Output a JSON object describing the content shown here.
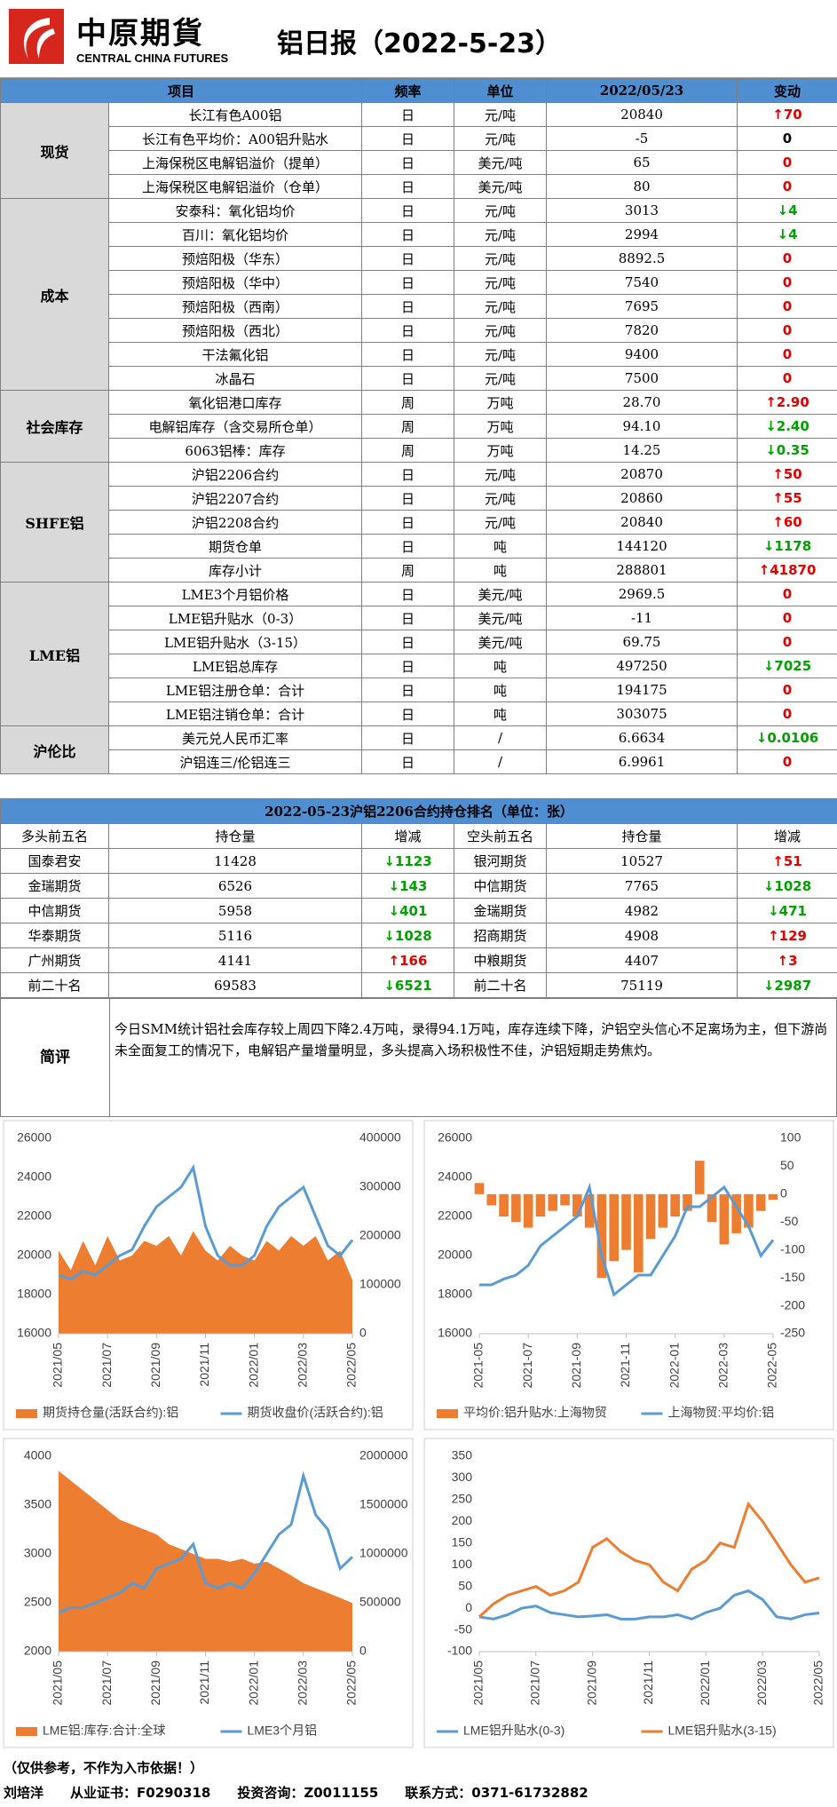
{
  "header": {
    "logo_cn": "中原期貨",
    "logo_en": "CENTRAL CHINA FUTURES",
    "title": "铝日报（2022-5-23）"
  },
  "table": {
    "columns": [
      "项目",
      "频率",
      "单位",
      "2022/05/23",
      "变动"
    ],
    "groups": [
      {
        "name": "现货",
        "rows": [
          {
            "item": "长江有色A00铝",
            "freq": "日",
            "unit": "元/吨",
            "value": "20840",
            "change": "↑70",
            "color": "#e00000"
          },
          {
            "item": "长江有色平均价：A00铝升贴水",
            "freq": "日",
            "unit": "元/吨",
            "value": "-5",
            "change": "0",
            "color": "#000000"
          },
          {
            "item": "上海保税区电解铝溢价（提单）",
            "freq": "日",
            "unit": "美元/吨",
            "value": "65",
            "change": "0",
            "color": "#e00000"
          },
          {
            "item": "上海保税区电解铝溢价（仓单）",
            "freq": "日",
            "unit": "美元/吨",
            "value": "80",
            "change": "0",
            "color": "#e00000"
          }
        ]
      },
      {
        "name": "成本",
        "rows": [
          {
            "item": "安泰科：氧化铝均价",
            "freq": "日",
            "unit": "元/吨",
            "value": "3013",
            "change": "↓4",
            "color": "#00a000"
          },
          {
            "item": "百川：氧化铝均价",
            "freq": "日",
            "unit": "元/吨",
            "value": "2994",
            "change": "↓4",
            "color": "#00a000"
          },
          {
            "item": "预焙阳极（华东）",
            "freq": "日",
            "unit": "元/吨",
            "value": "8892.5",
            "change": "0",
            "color": "#e00000"
          },
          {
            "item": "预焙阳极（华中）",
            "freq": "日",
            "unit": "元/吨",
            "value": "7540",
            "change": "0",
            "color": "#e00000"
          },
          {
            "item": "预焙阳极（西南）",
            "freq": "日",
            "unit": "元/吨",
            "value": "7695",
            "change": "0",
            "color": "#e00000"
          },
          {
            "item": "预焙阳极（西北）",
            "freq": "日",
            "unit": "元/吨",
            "value": "7820",
            "change": "0",
            "color": "#e00000"
          },
          {
            "item": "干法氟化铝",
            "freq": "日",
            "unit": "元/吨",
            "value": "9400",
            "change": "0",
            "color": "#e00000"
          },
          {
            "item": "冰晶石",
            "freq": "日",
            "unit": "元/吨",
            "value": "7500",
            "change": "0",
            "color": "#e00000"
          }
        ]
      },
      {
        "name": "社会库存",
        "rows": [
          {
            "item": "氧化铝港口库存",
            "freq": "周",
            "unit": "万吨",
            "value": "28.70",
            "change": "↑2.90",
            "color": "#e00000"
          },
          {
            "item": "电解铝库存（含交易所仓单）",
            "freq": "周",
            "unit": "万吨",
            "value": "94.10",
            "change": "↓2.40",
            "color": "#00a000"
          },
          {
            "item": "6063铝棒：库存",
            "freq": "周",
            "unit": "万吨",
            "value": "14.25",
            "change": "↓0.35",
            "color": "#00a000"
          }
        ]
      },
      {
        "name": "SHFE铝",
        "rows": [
          {
            "item": "沪铝2206合约",
            "freq": "日",
            "unit": "元/吨",
            "value": "20870",
            "change": "↑50",
            "color": "#e00000"
          },
          {
            "item": "沪铝2207合约",
            "freq": "日",
            "unit": "元/吨",
            "value": "20860",
            "change": "↑55",
            "color": "#e00000"
          },
          {
            "item": "沪铝2208合约",
            "freq": "日",
            "unit": "元/吨",
            "value": "20840",
            "change": "↑60",
            "color": "#e00000"
          },
          {
            "item": "期货仓单",
            "freq": "日",
            "unit": "吨",
            "value": "144120",
            "change": "↓1178",
            "color": "#00a000"
          },
          {
            "item": "库存小计",
            "freq": "周",
            "unit": "吨",
            "value": "288801",
            "change": "↑41870",
            "color": "#e00000"
          }
        ]
      },
      {
        "name": "LME铝",
        "rows": [
          {
            "item": "LME3个月铝价格",
            "freq": "日",
            "unit": "美元/吨",
            "value": "2969.5",
            "change": "0",
            "color": "#e00000"
          },
          {
            "item": "LME铝升贴水（0-3）",
            "freq": "日",
            "unit": "美元/吨",
            "value": "-11",
            "change": "0",
            "color": "#e00000"
          },
          {
            "item": "LME铝升贴水（3-15）",
            "freq": "日",
            "unit": "美元/吨",
            "value": "69.75",
            "change": "0",
            "color": "#e00000"
          },
          {
            "item": "LME铝总库存",
            "freq": "日",
            "unit": "吨",
            "value": "497250",
            "change": "↓7025",
            "color": "#00a000"
          },
          {
            "item": "LME铝注册仓单：合计",
            "freq": "日",
            "unit": "吨",
            "value": "194175",
            "change": "0",
            "color": "#e00000"
          },
          {
            "item": "LME铝注销仓单：合计",
            "freq": "日",
            "unit": "吨",
            "value": "303075",
            "change": "0",
            "color": "#e00000"
          }
        ]
      },
      {
        "name": "沪伦比",
        "rows": [
          {
            "item": "美元兑人民币汇率",
            "freq": "日",
            "unit": "/",
            "value": "6.6634",
            "change": "↓0.0106",
            "color": "#00a000"
          },
          {
            "item": "沪铝连三/伦铝连三",
            "freq": "日",
            "unit": "/",
            "value": "6.9961",
            "change": "0",
            "color": "#e00000"
          }
        ]
      }
    ]
  },
  "ranking": {
    "title": "2022-05-23沪铝2206合约持仓排名（单位：张）",
    "columns": [
      "多头前五名",
      "持仓量",
      "增减",
      "空头前五名",
      "持仓量",
      "增减"
    ],
    "rows": [
      [
        {
          "name": "国泰君安",
          "position": "11428",
          "change": "↓1123",
          "color": "#00a000"
        },
        {
          "name": "银河期货",
          "position": "10527",
          "change": "↑51",
          "color": "#e00000"
        }
      ],
      [
        {
          "name": "金瑞期货",
          "position": "6526",
          "change": "↓143",
          "color": "#00a000"
        },
        {
          "name": "中信期货",
          "position": "7765",
          "change": "↓1028",
          "color": "#00a000"
        }
      ],
      [
        {
          "name": "中信期货",
          "position": "5958",
          "change": "↓401",
          "color": "#00a000"
        },
        {
          "name": "金瑞期货",
          "position": "4982",
          "change": "↓471",
          "color": "#00a000"
        }
      ],
      [
        {
          "name": "华泰期货",
          "position": "5116",
          "change": "↓1028",
          "color": "#00a000"
        },
        {
          "name": "招商期货",
          "position": "4908",
          "change": "↑129",
          "color": "#e00000"
        }
      ],
      [
        {
          "name": "广州期货",
          "position": "4141",
          "change": "↑166",
          "color": "#e00000"
        },
        {
          "name": "中粮期货",
          "position": "4407",
          "change": "↑3",
          "color": "#e00000"
        }
      ],
      [
        {
          "name": "前二十名",
          "position": "69583",
          "change": "↓6521",
          "color": "#00a000"
        },
        {
          "name": "前二十名",
          "position": "75119",
          "change": "↓2987",
          "color": "#00a000"
        }
      ]
    ]
  },
  "comment": {
    "label": "简评",
    "text": "今日SMM统计铝社会库存较上周四下降2.4万吨，录得94.1万吨，库存连续下降，沪铝空头信心不足离场为主，但下游尚未全面复工的情况下，电解铝产量增量明显，多头提高入场积极性不佳，沪铝短期走势焦灼。"
  },
  "chart_data": [
    {
      "type": "combo",
      "xlim": [
        0,
        12
      ],
      "x": [
        0,
        0.5,
        1,
        1.5,
        2,
        2.5,
        3,
        3.5,
        4,
        4.5,
        5,
        5.5,
        6,
        6.5,
        7,
        7.5,
        8,
        8.5,
        9,
        9.5,
        10,
        10.5,
        11,
        11.5,
        12
      ],
      "xticks": [
        {
          "value": 0,
          "label": "2021/05"
        },
        {
          "value": 2,
          "label": "2021/07"
        },
        {
          "value": 4,
          "label": "2021/09"
        },
        {
          "value": 6,
          "label": "2021/11"
        },
        {
          "value": 8,
          "label": "2022/01"
        },
        {
          "value": 10,
          "label": "2022/03"
        },
        {
          "value": 12,
          "label": "2022/05"
        }
      ],
      "ylim": [
        16000,
        26000
      ],
      "yticks": [
        16000,
        18000,
        20000,
        22000,
        24000,
        26000
      ],
      "y2lim": [
        0,
        400000
      ],
      "y2ticks": [
        0,
        100000,
        200000,
        300000,
        400000
      ],
      "series": [
        {
          "name": "期货持仓量(活跃合约):铝",
          "type": "area",
          "axis": "y2",
          "color": "#ed7d31",
          "values": [
            170000,
            130000,
            190000,
            140000,
            200000,
            150000,
            160000,
            190000,
            180000,
            200000,
            160000,
            210000,
            170000,
            150000,
            180000,
            160000,
            150000,
            190000,
            170000,
            200000,
            180000,
            200000,
            150000,
            170000,
            110000
          ]
        },
        {
          "name": "期货收盘价(活跃合约):铝",
          "type": "line",
          "color": "#5b9bd5",
          "values": [
            19000,
            18800,
            19200,
            19000,
            19500,
            20000,
            20300,
            21500,
            22500,
            23000,
            23500,
            24500,
            21500,
            20000,
            19500,
            19500,
            20000,
            21500,
            22500,
            23000,
            23500,
            22000,
            20500,
            20000,
            20800
          ]
        }
      ]
    },
    {
      "type": "combo",
      "xlim": [
        0,
        12
      ],
      "x": [
        0,
        0.5,
        1,
        1.5,
        2,
        2.5,
        3,
        3.5,
        4,
        4.5,
        5,
        5.5,
        6,
        6.5,
        7,
        7.5,
        8,
        8.5,
        9,
        9.5,
        10,
        10.5,
        11,
        11.5,
        12
      ],
      "xticks": [
        {
          "value": 0,
          "label": "2021-05"
        },
        {
          "value": 2,
          "label": "2021-07"
        },
        {
          "value": 4,
          "label": "2021-09"
        },
        {
          "value": 6,
          "label": "2021-11"
        },
        {
          "value": 8,
          "label": "2022-01"
        },
        {
          "value": 10,
          "label": "2022-03"
        },
        {
          "value": 12,
          "label": "2022-05"
        }
      ],
      "ylim": [
        16000,
        26000
      ],
      "yticks": [
        16000,
        18000,
        20000,
        22000,
        24000,
        26000
      ],
      "y2lim": [
        -250,
        100
      ],
      "y2ticks": [
        -250,
        -200,
        -150,
        -100,
        -50,
        0,
        50,
        100
      ],
      "series": [
        {
          "name": "平均价:铝升贴水:上海物贸",
          "type": "bar",
          "axis": "y2",
          "color": "#ed7d31",
          "values": [
            20,
            -20,
            -40,
            -50,
            -60,
            -40,
            -30,
            -20,
            -40,
            -60,
            -150,
            -120,
            -100,
            -140,
            -80,
            -60,
            -40,
            -30,
            60,
            -50,
            -90,
            -70,
            -60,
            -30,
            -10
          ]
        },
        {
          "name": "上海物贸:平均价:铝",
          "type": "line",
          "color": "#5b9bd5",
          "values": [
            18500,
            18500,
            18800,
            19000,
            19500,
            20500,
            21000,
            21500,
            22000,
            23500,
            20000,
            18000,
            18500,
            19000,
            19000,
            20000,
            21000,
            22500,
            22500,
            23000,
            23500,
            22500,
            21500,
            20000,
            20800
          ]
        }
      ]
    },
    {
      "type": "combo",
      "xlim": [
        0,
        12
      ],
      "x": [
        0,
        0.5,
        1,
        1.5,
        2,
        2.5,
        3,
        3.5,
        4,
        4.5,
        5,
        5.5,
        6,
        6.5,
        7,
        7.5,
        8,
        8.5,
        9,
        9.5,
        10,
        10.5,
        11,
        11.5,
        12
      ],
      "xticks": [
        {
          "value": 0,
          "label": "2021/05"
        },
        {
          "value": 2,
          "label": "2021/07"
        },
        {
          "value": 4,
          "label": "2021/09"
        },
        {
          "value": 6,
          "label": "2021/11"
        },
        {
          "value": 8,
          "label": "2022/01"
        },
        {
          "value": 10,
          "label": "2022/03"
        },
        {
          "value": 12,
          "label": "2022/05"
        }
      ],
      "ylim": [
        2000,
        4000
      ],
      "yticks": [
        2000,
        2500,
        3000,
        3500,
        4000
      ],
      "y2lim": [
        0,
        2000000
      ],
      "y2ticks": [
        0,
        500000,
        1000000,
        1500000,
        2000000
      ],
      "series": [
        {
          "name": "LME铝:库存:合计:全球",
          "type": "area",
          "axis": "y2",
          "color": "#ed7d31",
          "values": [
            1850000,
            1750000,
            1650000,
            1550000,
            1450000,
            1350000,
            1300000,
            1250000,
            1200000,
            1100000,
            1050000,
            1000000,
            950000,
            950000,
            920000,
            950000,
            900000,
            920000,
            850000,
            780000,
            700000,
            650000,
            600000,
            550000,
            497250
          ]
        },
        {
          "name": "LME3个月铝",
          "type": "line",
          "color": "#5b9bd5",
          "values": [
            2400,
            2450,
            2450,
            2500,
            2550,
            2600,
            2700,
            2650,
            2850,
            2900,
            2950,
            3100,
            2700,
            2650,
            2700,
            2650,
            2800,
            3000,
            3200,
            3300,
            3800,
            3400,
            3250,
            2850,
            2970
          ]
        }
      ]
    },
    {
      "type": "line",
      "xlim": [
        0,
        12
      ],
      "x": [
        0,
        0.5,
        1,
        1.5,
        2,
        2.5,
        3,
        3.5,
        4,
        4.5,
        5,
        5.5,
        6,
        6.5,
        7,
        7.5,
        8,
        8.5,
        9,
        9.5,
        10,
        10.5,
        11,
        11.5,
        12
      ],
      "xticks": [
        {
          "value": 0,
          "label": "2021/05"
        },
        {
          "value": 2,
          "label": "2021/07"
        },
        {
          "value": 4,
          "label": "2021/09"
        },
        {
          "value": 6,
          "label": "2021/11"
        },
        {
          "value": 8,
          "label": "2022/01"
        },
        {
          "value": 10,
          "label": "2022/03"
        },
        {
          "value": 12,
          "label": "2022/05"
        }
      ],
      "ylim": [
        -100,
        350
      ],
      "yticks": [
        -100,
        -50,
        0,
        50,
        100,
        150,
        200,
        250,
        300,
        350
      ],
      "series": [
        {
          "name": "LME铝升贴水(0-3)",
          "type": "line",
          "color": "#5b9bd5",
          "values": [
            -20,
            -25,
            -15,
            0,
            5,
            -10,
            -15,
            -20,
            -18,
            -15,
            -25,
            -25,
            -20,
            -20,
            -15,
            -25,
            -10,
            0,
            30,
            40,
            20,
            -20,
            -25,
            -15,
            -11
          ]
        },
        {
          "name": "LME铝升贴水(3-15)",
          "type": "line",
          "color": "#ed7d31",
          "values": [
            -20,
            10,
            30,
            40,
            50,
            30,
            40,
            60,
            140,
            160,
            130,
            110,
            100,
            60,
            40,
            90,
            110,
            150,
            140,
            240,
            200,
            150,
            100,
            60,
            70
          ]
        }
      ]
    }
  ],
  "footer": {
    "note": "（仅供参考，不作为入市依据！）",
    "items": [
      "刘培洋",
      "从业证书：F0290318",
      "投资咨询：Z0011155",
      "联系方式：0371-61732882"
    ]
  }
}
